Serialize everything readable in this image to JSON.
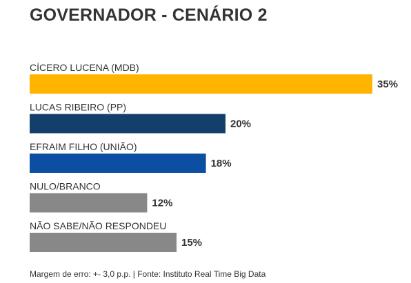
{
  "chart_data": {
    "type": "bar",
    "orientation": "horizontal",
    "title": "GOVERNADOR - CENÁRIO 2",
    "categories": [
      "CÍCERO LUCENA (MDB)",
      "LUCAS RIBEIRO (PP)",
      "EFRAIM FILHO (UNIÃO)",
      "NULO/BRANCO",
      "NÃO SABE/NÃO RESPONDEU"
    ],
    "values": [
      35,
      20,
      18,
      12,
      15
    ],
    "value_labels": [
      "35%",
      "20%",
      "18%",
      "12%",
      "15%"
    ],
    "colors": [
      "#FFB400",
      "#143F6B",
      "#0B4EA2",
      "#888888",
      "#888888"
    ],
    "unit": "%",
    "xlim": [
      0,
      35
    ],
    "grid": false,
    "legend": "none"
  },
  "footer": "Margem de erro: +- 3,0 p.p. | Fonte: Instituto Real Time Big Data"
}
